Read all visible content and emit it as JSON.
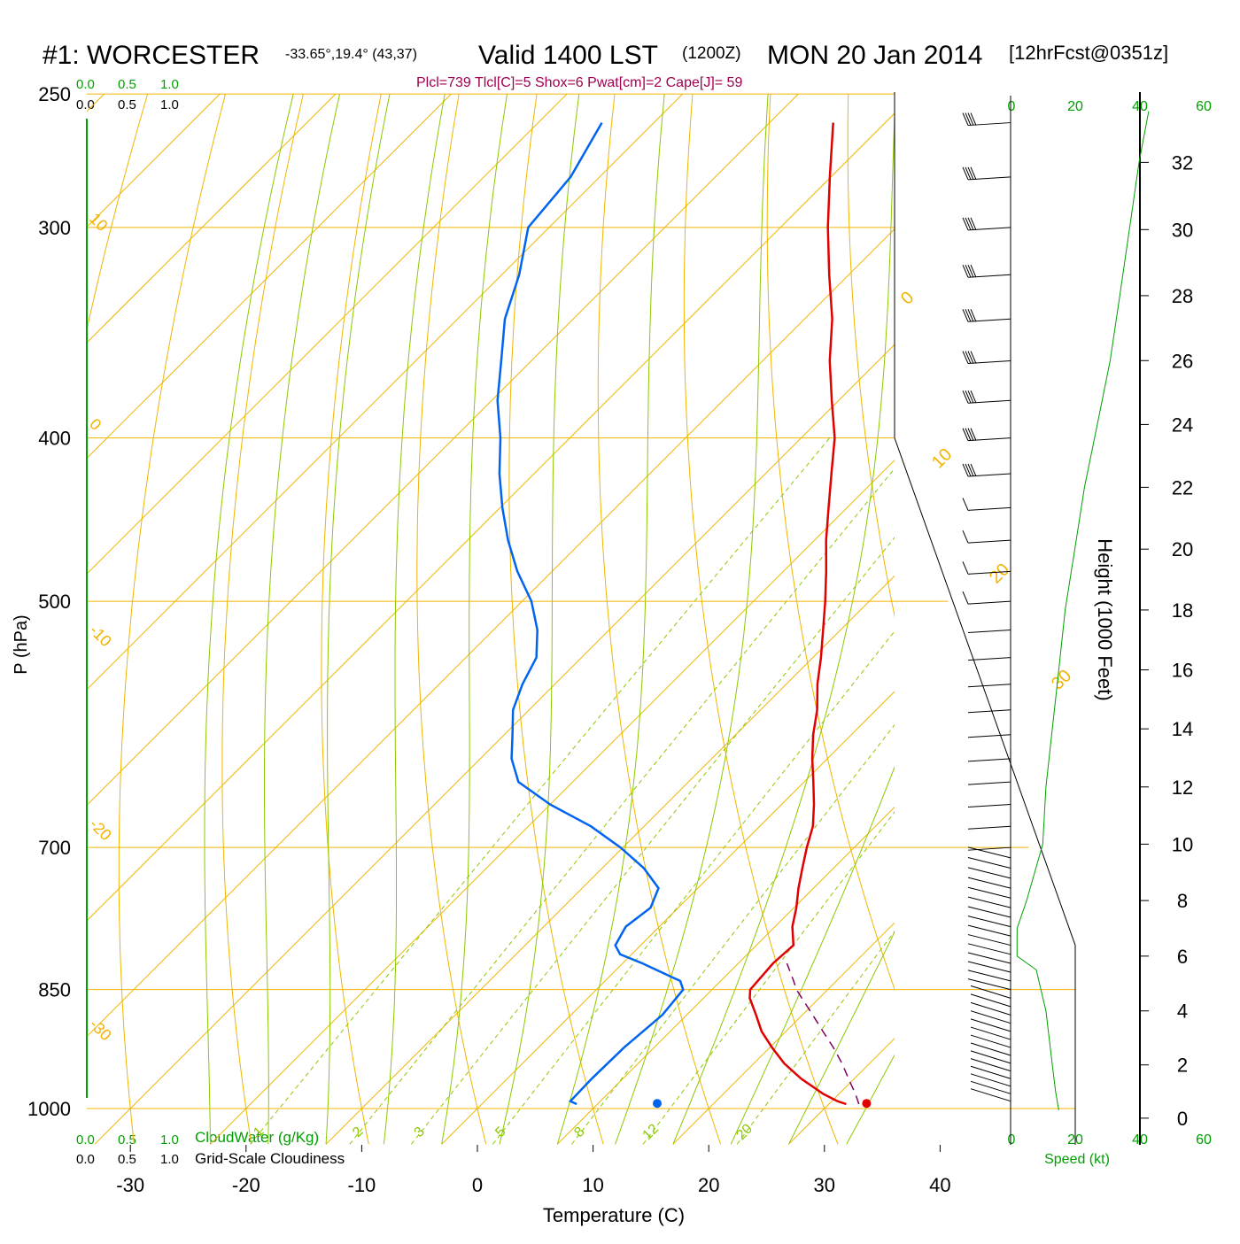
{
  "header": {
    "station": "#1: WORCESTER",
    "coords": "-33.65°,19.4° (43,37)",
    "valid": "Valid 1400 LST",
    "zulu": "(1200Z)",
    "date": "MON 20 Jan 2014",
    "forecast": "[12hrFcst@0351z]",
    "indices": "Plcl=739 Tlcl[C]=5 Shox=6 Pwat[cm]=2 Cape[J]= 59"
  },
  "colors": {
    "isotherm": "#f0b400",
    "dry_adiabat": "#f0b400",
    "moist_adiabat": "#8cc800",
    "mixing_ratio": "#8cc800",
    "temperature": "#e00000",
    "dewpoint": "#0064f0",
    "parcel": "#800060",
    "green_text": "#00a000",
    "indices_text": "#a00050"
  },
  "chart_data": {
    "type": "skew-t log-p",
    "xlabel": "Temperature (C)",
    "ylabel": "P (hPa)",
    "x_ticks": [
      "-30",
      "-20",
      "-10",
      "0",
      "10",
      "20",
      "30",
      "40"
    ],
    "x_tick_values": [
      -30,
      -20,
      -10,
      0,
      10,
      20,
      30,
      40
    ],
    "p_ticks": [
      "250",
      "300",
      "400",
      "500",
      "700",
      "850",
      "1000"
    ],
    "p_tick_values": [
      250,
      300,
      400,
      500,
      700,
      850,
      1000
    ],
    "pressure_range": [
      250,
      1050
    ],
    "temperature": {
      "name": "Temperature",
      "p": [
        994,
        990,
        980,
        960,
        940,
        920,
        900,
        880,
        860,
        850,
        840,
        820,
        800,
        780,
        760,
        740,
        720,
        700,
        680,
        660,
        640,
        620,
        600,
        580,
        560,
        540,
        520,
        500,
        480,
        460,
        440,
        420,
        400,
        380,
        360,
        340,
        320,
        300,
        280,
        260
      ],
      "t": [
        31.5,
        30.5,
        28.6,
        25.4,
        22.6,
        20.2,
        17.9,
        16.0,
        14.0,
        13.3,
        13.2,
        13.0,
        13.2,
        11.5,
        10.2,
        8.7,
        7.3,
        5.9,
        4.6,
        2.8,
        0.8,
        -1.3,
        -3.3,
        -5.1,
        -7.3,
        -9.3,
        -11.5,
        -13.8,
        -16.3,
        -19.0,
        -21.6,
        -24.3,
        -27.1,
        -30.6,
        -34.2,
        -37.6,
        -41.7,
        -45.9,
        -50.1,
        -54.5
      ]
    },
    "dewpoint": {
      "name": "Dewpoint",
      "p": [
        994,
        990,
        960,
        920,
        880,
        850,
        840,
        820,
        810,
        800,
        780,
        760,
        740,
        720,
        700,
        680,
        660,
        640,
        620,
        600,
        580,
        560,
        540,
        520,
        500,
        480,
        460,
        440,
        420,
        400,
        380,
        360,
        340,
        320,
        300,
        280,
        260
      ],
      "td": [
        8.2,
        7.4,
        7.3,
        7.4,
        7.9,
        7.5,
        6.5,
        1.7,
        -1.0,
        -2.2,
        -2.9,
        -2.4,
        -3.4,
        -6.4,
        -10.2,
        -14.6,
        -20.0,
        -24.7,
        -27.3,
        -29.3,
        -31.4,
        -32.8,
        -33.9,
        -36.2,
        -39.2,
        -43.0,
        -46.5,
        -49.8,
        -53.0,
        -56.0,
        -59.5,
        -62.6,
        -65.9,
        -68.5,
        -71.8,
        -72.5,
        -74.5
      ]
    },
    "parcel": {
      "name": "Parcel",
      "p": [
        994,
        980,
        960,
        940,
        920,
        900,
        880,
        860,
        850,
        840,
        820
      ],
      "t": [
        32.6,
        31.4,
        29.5,
        27.6,
        25.5,
        23.2,
        20.9,
        18.5,
        17.3,
        16.3,
        14.2
      ]
    },
    "surface_markers": {
      "p": 993,
      "temperature": 33.2,
      "dewpoint": 15.1
    },
    "isotherm_labels": [
      "0",
      "10",
      "20",
      "30",
      "-10",
      "-20",
      "-30"
    ],
    "mixing_ratio_labels": [
      "1",
      "2",
      "3",
      "5",
      "8",
      "12",
      "20"
    ],
    "mixing_ratio_values": [
      1,
      2,
      3,
      5,
      8,
      12,
      20
    ],
    "upper_isotherm_labels": [
      "10",
      "0",
      "-10",
      "-20",
      "-30"
    ],
    "cloud_scale_labels": [
      "0.0",
      "0.5",
      "1.0"
    ],
    "cloud_water_label": "CloudWater (g/Kg)",
    "cloudiness_label": "Grid-Scale Cloudiness",
    "wind_speed_ticks": [
      "0",
      "20",
      "40",
      "60"
    ],
    "wind_speed_label": "Speed (kt)",
    "height_label": "Height (1000 Feet)",
    "height_ticks": [
      "0",
      "2",
      "4",
      "6",
      "8",
      "10",
      "12",
      "14",
      "16",
      "18",
      "20",
      "22",
      "24",
      "26",
      "28",
      "30",
      "32"
    ],
    "wind_speed_profile": {
      "height_kft": [
        0.3,
        1,
        2,
        3,
        4,
        5,
        5.5,
        6,
        7,
        8,
        10,
        12,
        14,
        16,
        18,
        20,
        22,
        24,
        26,
        28,
        30,
        32,
        33.5
      ],
      "speed_kt": [
        15,
        14,
        13,
        12,
        11,
        9,
        8,
        2,
        2,
        5,
        10,
        11,
        13,
        15,
        17,
        20,
        23,
        27,
        31,
        34,
        37,
        40,
        43
      ]
    },
    "wind_barbs_hpa": [
      260,
      280,
      300,
      320,
      340,
      360,
      380,
      400,
      420,
      440,
      460,
      480,
      500,
      520,
      540,
      560,
      580,
      600,
      620,
      640,
      660,
      680,
      700,
      710,
      720,
      730,
      740,
      750,
      760,
      770,
      780,
      790,
      800,
      810,
      820,
      830,
      840,
      850,
      860,
      870,
      880,
      890,
      900,
      910,
      920,
      930,
      940,
      950,
      960,
      970,
      980,
      990
    ]
  }
}
